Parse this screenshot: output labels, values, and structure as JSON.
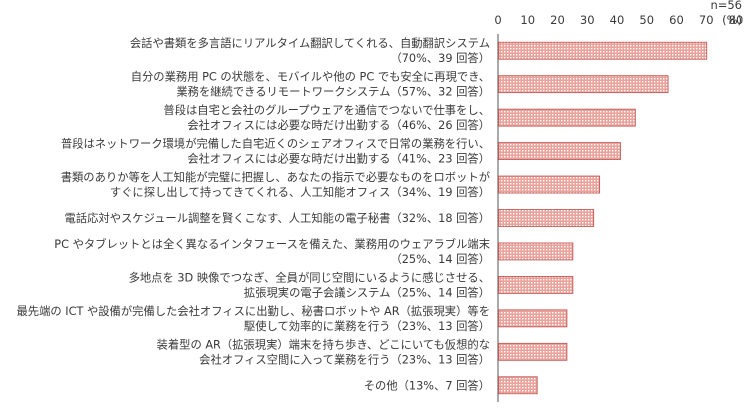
{
  "chart_data": {
    "type": "bar",
    "orientation": "horizontal",
    "note": "n=56",
    "unit": "(%)",
    "xlim": [
      0,
      80
    ],
    "ticks": [
      "0",
      "10",
      "20",
      "30",
      "40",
      "50",
      "60",
      "70",
      "80"
    ],
    "categories": [
      [
        "会話や書類を多言語にリアルタイム翻訳してくれる、自動翻訳システム",
        "（70%、39 回答）"
      ],
      [
        "自分の業務用 PC の状態を、モバイルや他の PC でも安全に再現でき、",
        "業務を継続できるリモートワークシステム（57%、32 回答）"
      ],
      [
        "普段は自宅と会社のグループウェアを通信でつないで仕事をし、",
        "会社オフィスには必要な時だけ出勤する（46%、26 回答）"
      ],
      [
        "普段はネットワーク環境が完備した自宅近くのシェアオフィスで日常の業務を行い、",
        "会社オフィスには必要な時だけ出勤する（41%、23 回答）"
      ],
      [
        "書類のありか等を人工知能が完璧に把握し、あなたの指示で必要なものをロボットが",
        "すぐに探し出して持ってきてくれる、人工知能オフィス（34%、19 回答）"
      ],
      [
        "電話応対やスケジュール調整を賢くこなす、人工知能の電子秘書（32%、18 回答）"
      ],
      [
        "PC やタブレットとは全く異なるインタフェースを備えた、業務用のウェアラブル端末",
        "（25%、14 回答）"
      ],
      [
        "多地点を 3D 映像でつなぎ、全員が同じ空間にいるように感じさせる、",
        "拡張現実の電子会議システム（25%、14 回答）"
      ],
      [
        "最先端の ICT や設備が完備した会社オフィスに出勤し、秘書ロボットや AR（拡張現実）等を",
        "駆使して効率的に業務を行う（23%、13 回答）"
      ],
      [
        "装着型の AR（拡張現実）端末を持ち歩き、どこにいても仮想的な",
        "会社オフィス空間に入って業務を行う（23%、13 回答）"
      ],
      [
        "その他（13%、7 回答）"
      ]
    ],
    "values": [
      70,
      57,
      46,
      41,
      34,
      32,
      25,
      25,
      23,
      23,
      13
    ],
    "bar_color": "#e8a39c",
    "bar_pattern_color": "#ffffff",
    "bar_border": "#c0504d",
    "axis_color": "#555555"
  }
}
